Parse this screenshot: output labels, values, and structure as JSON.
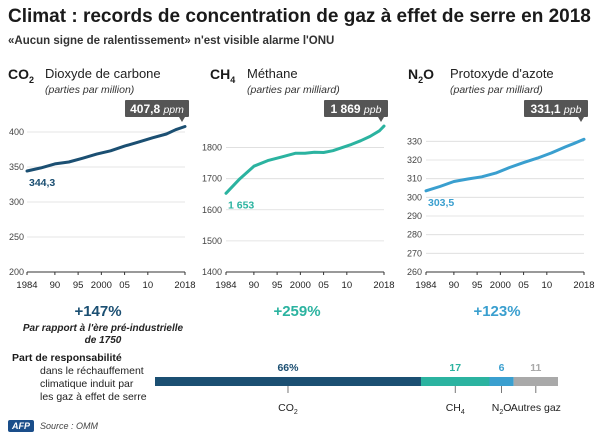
{
  "header": {
    "title": "Climat : records de concentration de gaz à effet de serre en 2018",
    "subtitle": "«Aucun signe de ralentissement» n'est visible alarme l'ONU"
  },
  "chart_data": [
    {
      "type": "line",
      "formula": "CO",
      "subscript": "2",
      "name": "Dioxyde de carbone",
      "unit": "(parties par million)",
      "x": [
        1984,
        1987,
        1990,
        1993,
        1996,
        1999,
        2002,
        2005,
        2008,
        2011,
        2014,
        2016,
        2018
      ],
      "y": [
        344.3,
        348.7,
        354.4,
        357.1,
        362.6,
        368.4,
        373.2,
        379.8,
        385.6,
        391.7,
        397.2,
        403.3,
        407.8
      ],
      "start_label": "344,3",
      "end_value": "407,8",
      "end_unit": "ppm",
      "ylim": [
        200,
        400
      ],
      "yticks": [
        200,
        250,
        300,
        350,
        400
      ],
      "xticks": [
        "1984",
        "90",
        "95",
        "2000",
        "05",
        "10",
        "2018"
      ],
      "xtick_values": [
        1984,
        1990,
        1995,
        2000,
        2005,
        2010,
        2018
      ],
      "color": "#1b4f72",
      "change": "+147%",
      "change_note": "Par rapport à l'ère pré-industrielle de 1750"
    },
    {
      "type": "line",
      "formula": "CH",
      "subscript": "4",
      "name": "Méthane",
      "unit": "(parties par milliard)",
      "x": [
        1984,
        1987,
        1990,
        1993,
        1996,
        1999,
        2001,
        2003,
        2005,
        2007,
        2009,
        2011,
        2013,
        2015,
        2017,
        2018
      ],
      "y": [
        1653,
        1700,
        1740,
        1758,
        1770,
        1782,
        1782,
        1785,
        1784,
        1790,
        1800,
        1810,
        1822,
        1836,
        1854,
        1869
      ],
      "start_label": "1 653",
      "end_value": "1 869",
      "end_unit": "ppb",
      "ylim": [
        1400,
        1850
      ],
      "yticks": [
        1400,
        1500,
        1600,
        1700,
        1800
      ],
      "xticks": [
        "1984",
        "90",
        "95",
        "2000",
        "05",
        "10",
        "2018"
      ],
      "xtick_values": [
        1984,
        1990,
        1995,
        2000,
        2005,
        2010,
        2018
      ],
      "color": "#2bb3a0",
      "change": "+259%"
    },
    {
      "type": "line",
      "formula": "N",
      "subscript": "2",
      "formula_tail": "O",
      "name": "Protoxyde d'azote",
      "unit": "(parties par milliard)",
      "x": [
        1984,
        1987,
        1990,
        1993,
        1996,
        1999,
        2002,
        2005,
        2008,
        2011,
        2014,
        2016,
        2018
      ],
      "y": [
        303.5,
        305.8,
        308.5,
        309.8,
        311.0,
        313.0,
        316.0,
        318.6,
        321.0,
        323.8,
        327.0,
        329.0,
        331.1
      ],
      "start_label": "303,5",
      "end_value": "331,1",
      "end_unit": "ppb",
      "ylim": [
        260,
        335
      ],
      "yticks": [
        260,
        270,
        280,
        290,
        300,
        310,
        320,
        330
      ],
      "xticks": [
        "1984",
        "90",
        "95",
        "2000",
        "05",
        "10",
        "2018"
      ],
      "xtick_values": [
        1984,
        1990,
        1995,
        2000,
        2005,
        2010,
        2018
      ],
      "color": "#3a9fcf",
      "change": "+123%"
    }
  ],
  "responsibility": {
    "title": "Part de responsabilité",
    "lines": [
      "dans le réchauffement",
      "climatique induit par",
      "les gaz à effet de serre"
    ],
    "segments": [
      {
        "value": 66,
        "label": "66%",
        "gas": "CO",
        "sub": "2",
        "tail": "",
        "color": "#1b4f72"
      },
      {
        "value": 17,
        "label": "17",
        "gas": "CH",
        "sub": "4",
        "tail": "",
        "color": "#2bb3a0"
      },
      {
        "value": 6,
        "label": "6",
        "gas": "N",
        "sub": "2",
        "tail": "O",
        "color": "#3a9fcf"
      },
      {
        "value": 11,
        "label": "11",
        "gas": "Autres gaz",
        "sub": "",
        "tail": "",
        "color": "#a9a9a9"
      }
    ]
  },
  "footer": {
    "logo": "AFP",
    "source": "Source : OMM"
  }
}
